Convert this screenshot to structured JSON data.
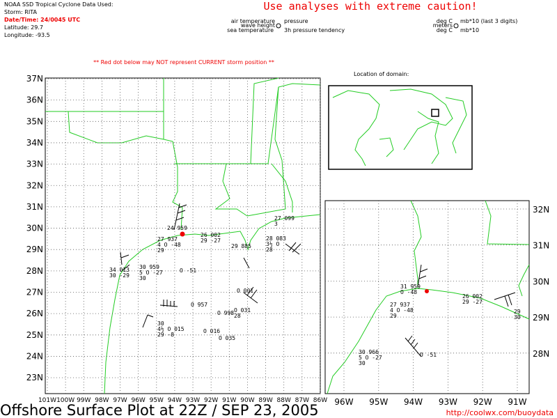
{
  "header": {
    "agency": "NOAA SSD Tropical Cyclone Data Used:",
    "storm": "Storm: RITA",
    "datetime": "Date/Time: 24/0045 UTC",
    "latitude": "Latitude: 29.7",
    "longitude": "Longitude: -93.5",
    "warning": "Use analyses with extreme caution!",
    "legend": {
      "air_temperature": "air temperature",
      "wave_height": "wave height",
      "sea_temperature": "sea temperature",
      "pressure": "pressure",
      "tendency": "3h pressure tendency",
      "deg_c_1": "deg C",
      "mb_last": "mb*10 (last 3 digits)",
      "meters": "meters",
      "deg_c_2": "deg C",
      "mb": "mb*10"
    },
    "red_note": "** Red dot below may NOT represent CURRENT storm position **",
    "location_label": "Location of domain:"
  },
  "main_map": {
    "lat_labels": [
      "37N",
      "36N",
      "35N",
      "34N",
      "33N",
      "32N",
      "31N",
      "30N",
      "29N",
      "28N",
      "27N",
      "26N",
      "25N",
      "24N",
      "23N"
    ],
    "lon_labels": [
      "101W",
      "100W",
      "99W",
      "98W",
      "97W",
      "96W",
      "95W",
      "94W",
      "93W",
      "92W",
      "91W",
      "90W",
      "89W",
      "88W",
      "87W",
      "86W"
    ],
    "stations": [
      {
        "lines": [
          "27 937",
          "4 O -48",
          "29"
        ]
      },
      {
        "lines": [
          "24 959"
        ]
      },
      {
        "lines": [
          "26 002",
          "29 -27"
        ]
      },
      {
        "lines": [
          "27 099",
          "3"
        ]
      },
      {
        "lines": [
          "28 083",
          "3½ O",
          "28"
        ]
      },
      {
        "lines": [
          "29 885"
        ]
      },
      {
        "lines": [
          "34 013",
          "30 -29"
        ]
      },
      {
        "lines": [
          "30 959",
          "5 O -27",
          "30"
        ]
      },
      {
        "lines": [
          "O -51"
        ]
      },
      {
        "lines": [
          "O 957"
        ]
      },
      {
        "lines": [
          "30",
          "4½ O 015",
          "29 -8"
        ]
      },
      {
        "lines": [
          "O 016"
        ]
      },
      {
        "lines": [
          "O 035"
        ]
      },
      {
        "lines": [
          "O 001"
        ]
      },
      {
        "lines": [
          "O 031",
          "28"
        ]
      },
      {
        "lines": [
          "O 998"
        ]
      }
    ]
  },
  "inset_map": {
    "lat_labels": [
      "32N",
      "31N",
      "30N",
      "29N",
      "28N"
    ],
    "lon_labels": [
      "96W",
      "95W",
      "94W",
      "93W",
      "92W",
      "91W"
    ],
    "stations": [
      {
        "lines": [
          "31 959",
          "O -48"
        ]
      },
      {
        "lines": [
          "27 937",
          "4 O -48",
          "29"
        ]
      },
      {
        "lines": [
          "26 002",
          "29 -27"
        ]
      },
      {
        "lines": [
          "29",
          "30"
        ]
      },
      {
        "lines": [
          "30 966",
          "5 O -27",
          "30"
        ]
      },
      {
        "lines": [
          "O -51"
        ]
      }
    ]
  },
  "footer": {
    "title": "Offshore Surface Plot at 22Z / SEP 23, 2005",
    "url": "http://coolwx.com/buoydata"
  }
}
